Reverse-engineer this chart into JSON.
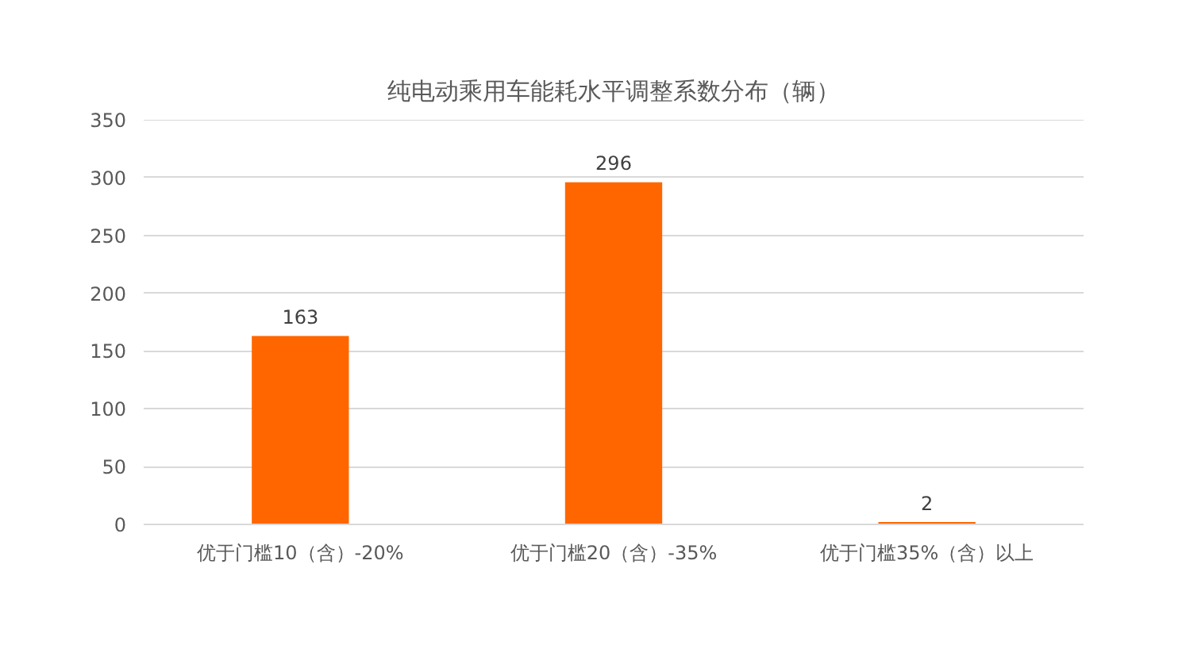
{
  "chart_data": {
    "type": "bar",
    "title": "纯电动乘用车能耗水平调整系数分布（辆）",
    "categories": [
      "优于门槛10（含）-20%",
      "优于门槛20（含）-35%",
      "优于门槛35%（含）以上"
    ],
    "values": [
      163,
      296,
      2
    ],
    "color": "#ff6600",
    "ylim": [
      0,
      350
    ],
    "yticks": [
      0,
      50,
      100,
      150,
      200,
      250,
      300,
      350
    ],
    "grid": "y",
    "data_labels": true
  }
}
